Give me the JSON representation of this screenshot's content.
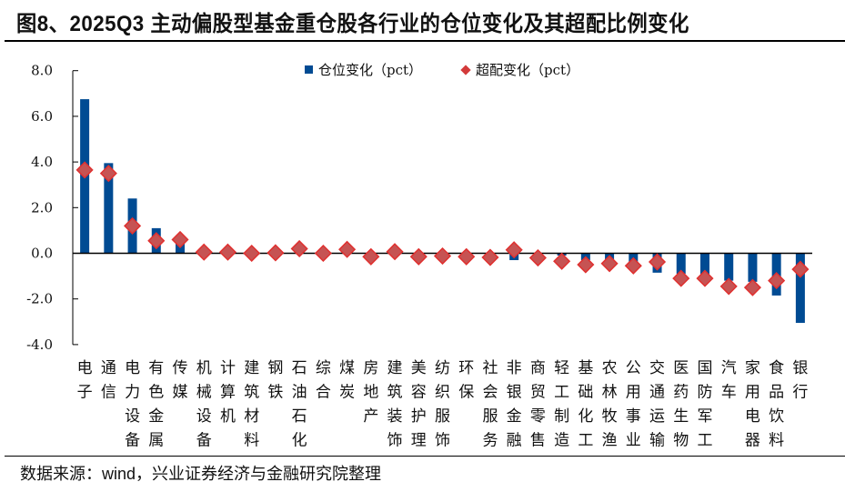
{
  "header": {
    "title": "图8、2025Q3 主动偏股型基金重仓股各行业的仓位变化及其超配比例变化"
  },
  "footer": {
    "source": "数据来源：wind，兴业证券经济与金融研究院整理"
  },
  "legend": {
    "position_label": "仓位变化（pct）",
    "overweight_label": "超配变化（pct）"
  },
  "colors": {
    "bar": "#004b93",
    "marker": "#c65353",
    "marker_border": "#e0302f",
    "axis": "#000000"
  },
  "chart_data": {
    "type": "bar+scatter",
    "title": "2025Q3 主动偏股型基金重仓股各行业的仓位变化及其超配比例变化",
    "xlabel": "",
    "ylabel": "",
    "ylim": [
      -4.0,
      8.0
    ],
    "yticks": [
      "8.0",
      "6.0",
      "4.0",
      "2.0",
      "0.0",
      "-2.0",
      "-4.0"
    ],
    "grid": false,
    "legend_position": "top",
    "categories": [
      "电子",
      "通信",
      "电力设备",
      "有色金属",
      "传媒",
      "机械设备",
      "计算机",
      "建筑材料",
      "钢铁",
      "石油石化",
      "综合",
      "煤炭",
      "房地产",
      "建筑装饰",
      "美容护理",
      "纺织服饰",
      "环保",
      "社会服务",
      "非银金融",
      "商贸零售",
      "轻工制造",
      "基础化工",
      "农林牧渔",
      "公用事业",
      "交通运输",
      "医药生物",
      "国防军工",
      "汽车",
      "家用电器",
      "食品饮料",
      "银行"
    ],
    "series": [
      {
        "name": "仓位变化（pct）",
        "type": "bar",
        "values": [
          6.75,
          3.95,
          2.4,
          1.1,
          0.55,
          0.02,
          0.03,
          0.0,
          0.02,
          0.05,
          0.0,
          0.04,
          -0.05,
          0.03,
          -0.03,
          -0.03,
          -0.05,
          -0.05,
          -0.3,
          -0.1,
          -0.1,
          -0.3,
          -0.3,
          -0.45,
          -0.85,
          -0.9,
          -0.95,
          -1.2,
          -1.25,
          -1.85,
          -3.05
        ]
      },
      {
        "name": "超配变化（pct）",
        "type": "scatter",
        "values": [
          3.65,
          3.5,
          1.2,
          0.55,
          0.6,
          0.05,
          0.05,
          0.0,
          0.02,
          0.2,
          0.0,
          0.17,
          -0.15,
          0.07,
          -0.15,
          -0.12,
          -0.15,
          -0.18,
          0.15,
          -0.2,
          -0.35,
          -0.5,
          -0.45,
          -0.55,
          -0.38,
          -1.1,
          -1.1,
          -1.45,
          -1.5,
          -1.2,
          -0.7
        ]
      }
    ]
  }
}
